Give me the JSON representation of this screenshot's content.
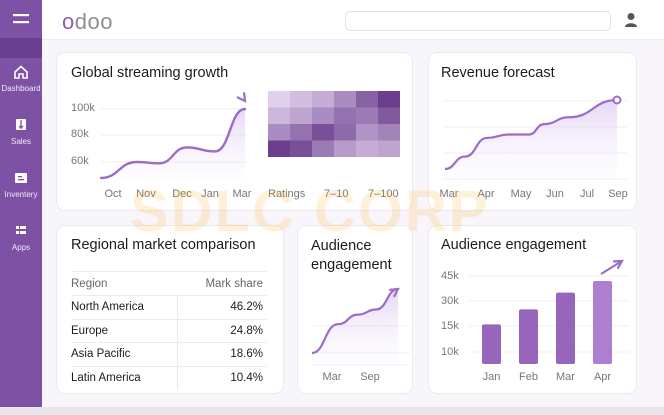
{
  "header": {
    "logo_a": "o",
    "logo_b": "doo",
    "search_placeholder": ""
  },
  "sidebar": {
    "items": [
      {
        "label": "Dashboard"
      },
      {
        "label": "Sales"
      },
      {
        "label": "Inventery"
      },
      {
        "label": "Apps"
      }
    ]
  },
  "streaming": {
    "title": "Global streaming growth",
    "y_ticks": [
      "100k",
      "80k",
      "60k"
    ],
    "x_labels": [
      "Oct",
      "Nov",
      "Dec",
      "Jan",
      "Mar"
    ],
    "values_k": [
      48,
      60,
      59,
      71,
      68,
      100
    ],
    "heatmap_labels": [
      "Ratings",
      "7–10",
      "7–100"
    ],
    "heatmap": [
      [
        0.1,
        0.2,
        0.3,
        0.5,
        0.75,
        0.95
      ],
      [
        0.25,
        0.35,
        0.5,
        0.65,
        0.6,
        0.8
      ],
      [
        0.5,
        0.65,
        0.85,
        0.7,
        0.45,
        0.55
      ],
      [
        0.95,
        0.85,
        0.6,
        0.4,
        0.3,
        0.35
      ]
    ]
  },
  "revenue": {
    "title": "Revenue forecast",
    "x_labels": [
      "Mar",
      "Apr",
      "May",
      "Jun",
      "Jul",
      "Sep"
    ],
    "values": [
      0.0,
      0.18,
      0.45,
      0.5,
      0.5,
      0.65,
      0.75,
      1.0
    ]
  },
  "regional": {
    "title": "Regional market comparison",
    "columns": [
      "Region",
      "Mark share"
    ],
    "rows": [
      [
        "North America",
        "46.2%"
      ],
      [
        "Europe",
        "24.8%"
      ],
      [
        "Asia Pacific",
        "18.6%"
      ],
      [
        "Latin America",
        "10.4%"
      ]
    ]
  },
  "audience_small": {
    "title": "Audience engagement",
    "x_labels": [
      "Mar",
      "Sep"
    ],
    "values": [
      0,
      0.45,
      0.6,
      0.68,
      1.0
    ]
  },
  "audience_bars": {
    "title": "Audience engagement",
    "y_ticks": [
      "45k",
      "30k",
      "15k",
      "10k"
    ],
    "categories": [
      "Jan",
      "Feb",
      "Mar",
      "Apr"
    ],
    "values_k": [
      16,
      25,
      35,
      42
    ]
  },
  "watermark": "SDLC CORP",
  "colors": {
    "accent": "#9b6cc8",
    "sidebar": "#7d52a4"
  }
}
